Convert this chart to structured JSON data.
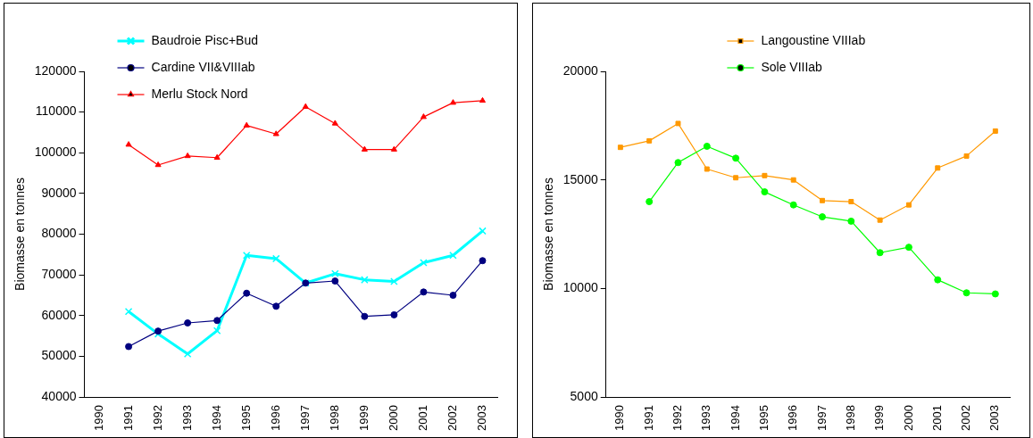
{
  "chart_data": [
    {
      "type": "line",
      "ylabel": "Biomasse en tonnes",
      "categories": [
        "1990",
        "1991",
        "1992",
        "1993",
        "1994",
        "1995",
        "1996",
        "1997",
        "1998",
        "1999",
        "2000",
        "2001",
        "2002",
        "2003"
      ],
      "ylim": [
        40000,
        120000
      ],
      "yticks": [
        40000,
        50000,
        60000,
        70000,
        80000,
        90000,
        100000,
        110000,
        120000
      ],
      "grid": false,
      "legend": "top left",
      "series": [
        {
          "name": "Baudroie Pisc+Bud",
          "color": "#00ffff",
          "marker": "cross",
          "values": [
            null,
            61000,
            55500,
            50600,
            56300,
            74800,
            74000,
            68000,
            70300,
            68800,
            68400,
            73000,
            74800,
            80800
          ]
        },
        {
          "name": "Cardine VII&VIIIab",
          "color": "#000080",
          "marker": "circle",
          "values": [
            null,
            52400,
            56200,
            58200,
            58800,
            65500,
            62300,
            68000,
            68500,
            59800,
            60200,
            65800,
            65000,
            73500
          ]
        },
        {
          "name": "Merlu Stock Nord",
          "color": "#ff0000",
          "marker": "triangle",
          "values": [
            null,
            102000,
            97000,
            99200,
            98800,
            106700,
            104600,
            111300,
            107200,
            100800,
            100800,
            108800,
            112300,
            112800
          ]
        }
      ]
    },
    {
      "type": "line",
      "ylabel": "Biomasse en tonnes",
      "categories": [
        "1990",
        "1991",
        "1992",
        "1993",
        "1994",
        "1995",
        "1996",
        "1997",
        "1998",
        "1999",
        "2000",
        "2001",
        "2002",
        "2003"
      ],
      "ylim": [
        5000,
        20000
      ],
      "yticks": [
        5000,
        10000,
        15000,
        20000
      ],
      "grid": false,
      "legend": "top",
      "series": [
        {
          "name": "Langoustine VIIIab",
          "color": "#ff9900",
          "marker": "square",
          "values": [
            16500,
            16800,
            17600,
            15500,
            15100,
            15200,
            15000,
            14050,
            14000,
            13150,
            13850,
            15550,
            16100,
            17250
          ]
        },
        {
          "name": "Sole VIIIab",
          "color": "#00ff00",
          "marker": "circle",
          "values": [
            null,
            14000,
            15800,
            16550,
            16000,
            14450,
            13850,
            13300,
            13100,
            11650,
            11900,
            10400,
            9800,
            9750
          ]
        }
      ]
    }
  ]
}
